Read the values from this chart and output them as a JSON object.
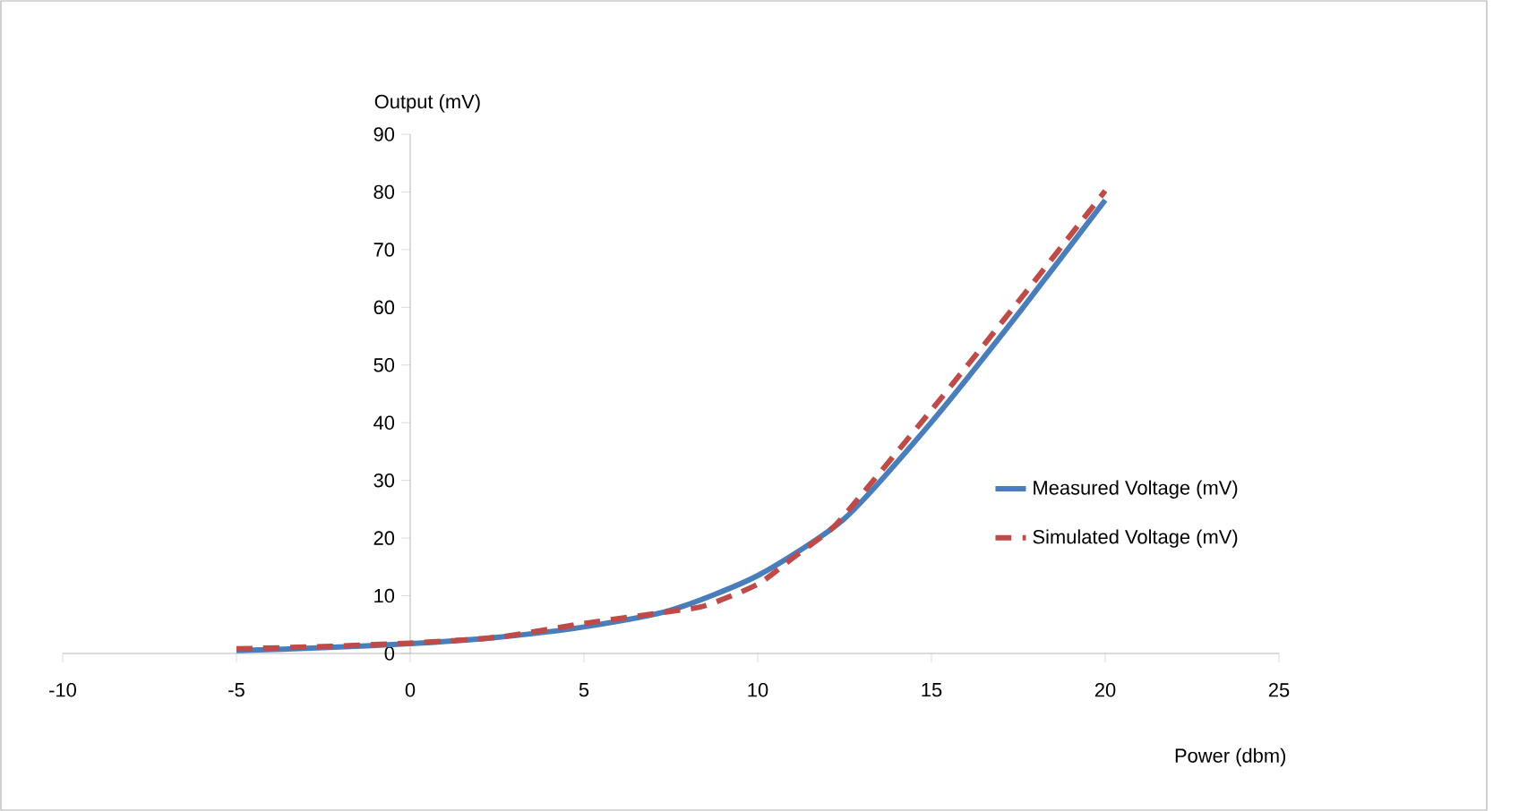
{
  "chart_data": {
    "type": "line",
    "xlabel": "Power (dbm)",
    "ylabel": "Output (mV)",
    "xlim": [
      -10,
      25
    ],
    "ylim": [
      0,
      90
    ],
    "xticks": [
      -10,
      -5,
      0,
      5,
      10,
      15,
      20,
      25
    ],
    "yticks": [
      0,
      10,
      20,
      30,
      40,
      50,
      60,
      70,
      80,
      90
    ],
    "grid": false,
    "legend": "right",
    "marker": "none",
    "series": [
      {
        "name": "Measured Voltage (mV)",
        "color": "#4a7ebb",
        "line_style": "solid",
        "x": [
          -5,
          -2.5,
          0,
          2.5,
          5,
          7.5,
          10,
          12.5,
          15,
          17.5,
          20
        ],
        "values": [
          0.5,
          1.0,
          1.7,
          2.8,
          4.6,
          7.5,
          13.5,
          23.4,
          40.1,
          58.9,
          78.6
        ]
      },
      {
        "name": "Simulated Voltage (mV)",
        "color": "#be4b48",
        "line_style": "dashed",
        "x": [
          -5,
          -2.5,
          0,
          2.5,
          5,
          7.5,
          8.5,
          10,
          11,
          12,
          12.5,
          15,
          17.5,
          20
        ],
        "values": [
          0.8,
          1.2,
          1.8,
          2.8,
          5.2,
          7.3,
          8.3,
          12,
          16.5,
          21,
          24,
          42.2,
          61,
          80.2
        ]
      }
    ]
  }
}
